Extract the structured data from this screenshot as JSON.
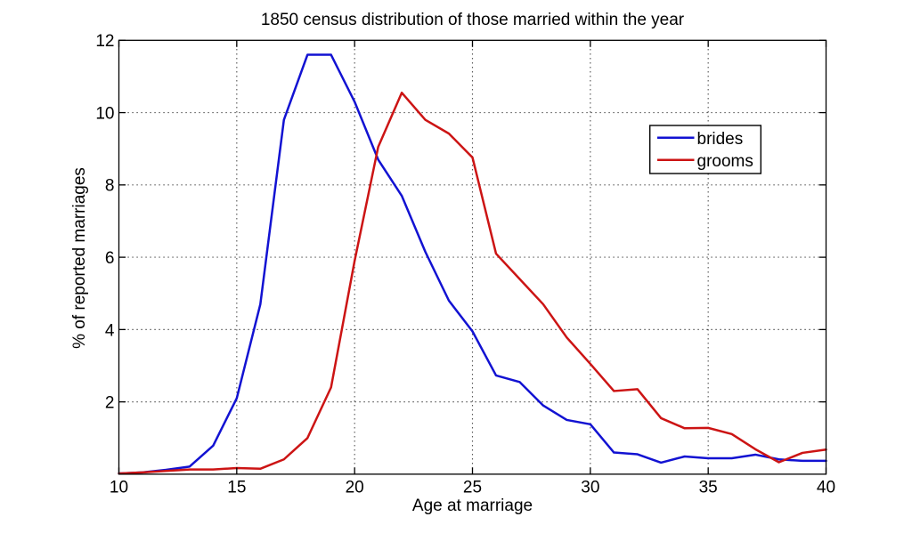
{
  "chart_data": {
    "type": "line",
    "title": "1850 census distribution of those married within the year",
    "xlabel": "Age at marriage",
    "ylabel": "% of reported marriages",
    "x": [
      10,
      11,
      12,
      13,
      14,
      15,
      16,
      17,
      18,
      19,
      20,
      21,
      22,
      23,
      24,
      25,
      26,
      27,
      28,
      29,
      30,
      31,
      32,
      33,
      34,
      35,
      36,
      37,
      38,
      39,
      40
    ],
    "series": [
      {
        "name": "brides",
        "color": "#1212d2",
        "values": [
          0.02,
          0.05,
          0.12,
          0.21,
          0.79,
          2.1,
          4.7,
          9.8,
          11.6,
          11.6,
          10.3,
          8.7,
          7.7,
          6.15,
          4.8,
          3.95,
          2.73,
          2.55,
          1.9,
          1.5,
          1.38,
          0.6,
          0.55,
          0.32,
          0.49,
          0.44,
          0.44,
          0.54,
          0.41,
          0.37,
          0.37
        ]
      },
      {
        "name": "grooms",
        "color": "#cc1414",
        "values": [
          0.02,
          0.05,
          0.09,
          0.13,
          0.13,
          0.17,
          0.15,
          0.41,
          1.0,
          2.4,
          5.9,
          9.05,
          10.55,
          9.8,
          9.42,
          8.76,
          6.1,
          5.4,
          4.7,
          3.78,
          3.05,
          2.3,
          2.35,
          1.55,
          1.27,
          1.28,
          1.11,
          0.69,
          0.33,
          0.59,
          0.68
        ]
      }
    ],
    "xlim": [
      10,
      40
    ],
    "ylim": [
      0,
      12
    ],
    "xticks": [
      10,
      15,
      20,
      25,
      30,
      35,
      40
    ],
    "yticks": [
      2,
      4,
      6,
      8,
      10,
      12
    ],
    "grid": "dotted",
    "legend_position": "upper-right-inside",
    "legend_entries": [
      "brides",
      "grooms"
    ]
  },
  "style_colors": {
    "frame": "#000000",
    "grid_dots": "#222222",
    "background": "#ffffff",
    "text": "#000000"
  }
}
